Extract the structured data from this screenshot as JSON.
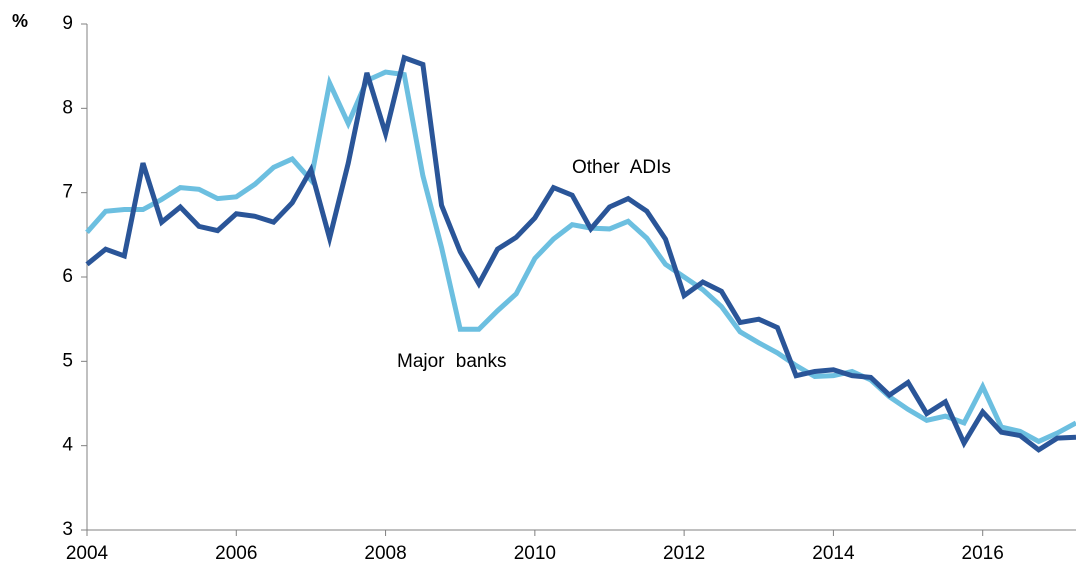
{
  "chart_data": {
    "type": "line",
    "y_label": "%",
    "x": [
      2004,
      2004.25,
      2004.5,
      2004.75,
      2005,
      2005.25,
      2005.5,
      2005.75,
      2006,
      2006.25,
      2006.5,
      2006.75,
      2007,
      2007.25,
      2007.5,
      2007.75,
      2008,
      2008.25,
      2008.5,
      2008.75,
      2009,
      2009.25,
      2009.5,
      2009.75,
      2010,
      2010.25,
      2010.5,
      2010.75,
      2011,
      2011.25,
      2011.5,
      2011.75,
      2012,
      2012.25,
      2012.5,
      2012.75,
      2013,
      2013.25,
      2013.5,
      2013.75,
      2014,
      2014.25,
      2014.5,
      2014.75,
      2015,
      2015.25,
      2015.5,
      2015.75,
      2016,
      2016.25,
      2016.5,
      2016.75,
      2017,
      2017.25
    ],
    "series": [
      {
        "name": "Major banks",
        "color": "#6cbfe0",
        "values": [
          6.53,
          6.78,
          6.8,
          6.8,
          6.92,
          7.06,
          7.04,
          6.93,
          6.95,
          7.1,
          7.3,
          7.4,
          7.15,
          8.3,
          7.82,
          8.33,
          8.43,
          8.4,
          7.2,
          6.35,
          5.38,
          5.38,
          5.6,
          5.8,
          6.22,
          6.45,
          6.62,
          6.58,
          6.57,
          6.66,
          6.46,
          6.15,
          6.0,
          5.85,
          5.65,
          5.35,
          5.22,
          5.1,
          4.95,
          4.82,
          4.83,
          4.88,
          4.78,
          4.58,
          4.43,
          4.3,
          4.35,
          4.27,
          4.7,
          4.22,
          4.17,
          4.05,
          4.15,
          4.27
        ]
      },
      {
        "name": "Other ADIs",
        "color": "#2a5598",
        "values": [
          6.15,
          6.33,
          6.25,
          7.35,
          6.65,
          6.83,
          6.6,
          6.55,
          6.75,
          6.72,
          6.65,
          6.88,
          7.27,
          6.46,
          7.35,
          8.42,
          7.7,
          8.6,
          8.52,
          6.85,
          6.3,
          5.92,
          6.33,
          6.47,
          6.7,
          7.06,
          6.97,
          6.57,
          6.83,
          6.93,
          6.78,
          6.45,
          5.78,
          5.94,
          5.83,
          5.46,
          5.5,
          5.4,
          4.83,
          4.88,
          4.9,
          4.83,
          4.81,
          4.6,
          4.75,
          4.38,
          4.52,
          4.03,
          4.4,
          4.16,
          4.12,
          3.95,
          4.09,
          4.1
        ]
      }
    ],
    "xlim": [
      2004,
      2017.25
    ],
    "xticks": [
      2004,
      2006,
      2008,
      2010,
      2012,
      2014,
      2016
    ],
    "ylim": [
      3,
      9
    ],
    "yticks": [
      3,
      4,
      5,
      6,
      7,
      8,
      9
    ],
    "grid": false
  }
}
